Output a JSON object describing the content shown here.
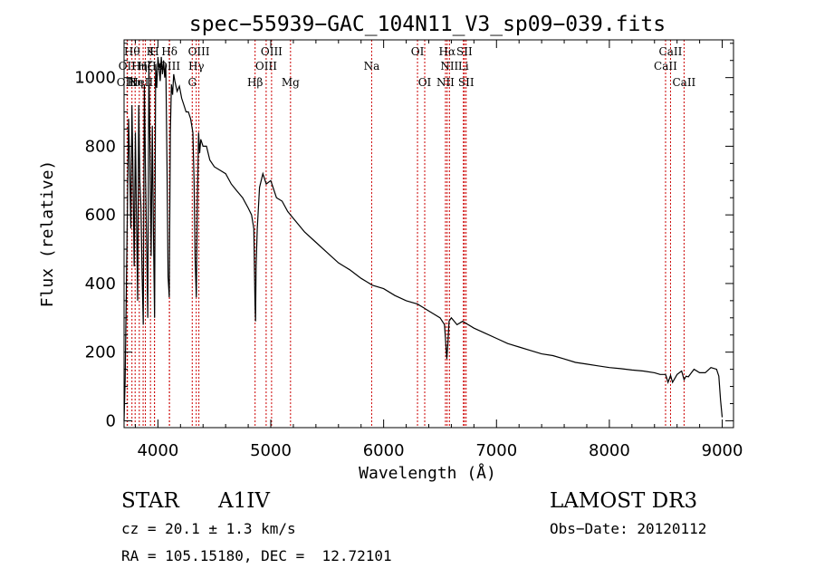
{
  "chart_data": {
    "type": "line",
    "title": "spec−55939−GAC_104N11_V3_sp09−039.fits",
    "xlabel": "Wavelength (Å)",
    "ylabel": "Flux (relative)",
    "xlim": [
      3700,
      9100
    ],
    "ylim": [
      -20,
      1110
    ],
    "xticks": [
      4000,
      5000,
      6000,
      7000,
      8000,
      9000
    ],
    "yticks": [
      0,
      200,
      400,
      600,
      800,
      1000
    ],
    "series": [
      {
        "name": "spectrum",
        "x": [
          3700,
          3710,
          3720,
          3730,
          3740,
          3750,
          3760,
          3770,
          3780,
          3790,
          3800,
          3810,
          3820,
          3830,
          3840,
          3850,
          3860,
          3870,
          3880,
          3890,
          3900,
          3910,
          3920,
          3930,
          3940,
          3950,
          3960,
          3970,
          3980,
          3990,
          4000,
          4010,
          4020,
          4030,
          4040,
          4050,
          4060,
          4070,
          4080,
          4090,
          4100,
          4110,
          4120,
          4130,
          4140,
          4150,
          4170,
          4190,
          4210,
          4230,
          4250,
          4270,
          4290,
          4310,
          4320,
          4330,
          4340,
          4350,
          4360,
          4370,
          4380,
          4400,
          4430,
          4460,
          4500,
          4550,
          4600,
          4650,
          4700,
          4750,
          4800,
          4830,
          4850,
          4860,
          4865,
          4870,
          4880,
          4900,
          4930,
          4960,
          5000,
          5050,
          5100,
          5150,
          5200,
          5300,
          5400,
          5500,
          5600,
          5700,
          5800,
          5850,
          5900,
          6000,
          6100,
          6200,
          6300,
          6350,
          6400,
          6450,
          6500,
          6540,
          6560,
          6570,
          6580,
          6600,
          6650,
          6700,
          6750,
          6800,
          6900,
          7000,
          7100,
          7200,
          7300,
          7400,
          7500,
          7600,
          7700,
          7800,
          7900,
          8000,
          8100,
          8200,
          8300,
          8400,
          8450,
          8498,
          8520,
          8542,
          8560,
          8600,
          8640,
          8662,
          8680,
          8700,
          8750,
          8800,
          8850,
          8900,
          8950,
          8970,
          8985,
          9000
        ],
        "values": [
          0,
          120,
          380,
          620,
          880,
          740,
          560,
          920,
          690,
          450,
          840,
          600,
          350,
          920,
          700,
          620,
          430,
          280,
          980,
          720,
          520,
          300,
          1040,
          780,
          480,
          860,
          560,
          300,
          1040,
          970,
          1060,
          1030,
          990,
          1060,
          1010,
          1050,
          1000,
          1040,
          750,
          420,
          360,
          840,
          980,
          950,
          1010,
          990,
          960,
          975,
          940,
          920,
          900,
          900,
          880,
          840,
          700,
          470,
          360,
          640,
          840,
          780,
          820,
          800,
          800,
          760,
          740,
          730,
          720,
          690,
          670,
          650,
          620,
          600,
          560,
          340,
          290,
          450,
          560,
          680,
          720,
          690,
          700,
          650,
          640,
          610,
          590,
          550,
          520,
          490,
          460,
          440,
          415,
          405,
          395,
          385,
          365,
          350,
          340,
          330,
          320,
          310,
          300,
          280,
          180,
          230,
          290,
          300,
          280,
          290,
          280,
          270,
          255,
          240,
          225,
          215,
          205,
          195,
          190,
          180,
          170,
          165,
          160,
          155,
          152,
          148,
          145,
          140,
          135,
          135,
          112,
          132,
          112,
          135,
          145,
          120,
          130,
          128,
          150,
          140,
          140,
          155,
          150,
          130,
          60,
          10
        ]
      }
    ],
    "lines": [
      {
        "x": 3727,
        "label": "OII",
        "row": 2
      },
      {
        "x": 3730,
        "label": "OIII",
        "row": 3
      },
      {
        "x": 3770,
        "label": "Hθ",
        "row": 1
      },
      {
        "x": 3798,
        "label": "Hη",
        "row": 3
      },
      {
        "x": 3835,
        "label": "Hη",
        "row": 2
      },
      {
        "x": 3869,
        "label": "NeIII",
        "row": 3
      },
      {
        "x": 3889,
        "label": "Hζ",
        "row": 2
      },
      {
        "x": 3934,
        "label": "K",
        "row": 1
      },
      {
        "x": 3969,
        "label": "H",
        "row": 1
      },
      {
        "x": 3970,
        "label": "Hε",
        "row": 2
      },
      {
        "x": 4102,
        "label": "Hδ",
        "row": 1
      },
      {
        "x": 4102,
        "label": "OIII",
        "row": 2
      },
      {
        "x": 4304,
        "label": "G",
        "row": 3
      },
      {
        "x": 4340,
        "label": "Hγ",
        "row": 2
      },
      {
        "x": 4363,
        "label": "OIII",
        "row": 1
      },
      {
        "x": 4861,
        "label": "Hβ",
        "row": 3
      },
      {
        "x": 4959,
        "label": "OIII",
        "row": 2
      },
      {
        "x": 5007,
        "label": "OIII",
        "row": 1
      },
      {
        "x": 5175,
        "label": "Mg",
        "row": 3
      },
      {
        "x": 5894,
        "label": "Na",
        "row": 2
      },
      {
        "x": 6300,
        "label": "OI",
        "row": 1
      },
      {
        "x": 6364,
        "label": "OI",
        "row": 3
      },
      {
        "x": 6548,
        "label": "NII",
        "row": 3
      },
      {
        "x": 6563,
        "label": "Hα",
        "row": 1
      },
      {
        "x": 6583,
        "label": "NII",
        "row": 2
      },
      {
        "x": 6707,
        "label": "Li",
        "row": 2
      },
      {
        "x": 6716,
        "label": "SII",
        "row": 1
      },
      {
        "x": 6731,
        "label": "SII",
        "row": 3
      },
      {
        "x": 8498,
        "label": "CaII",
        "row": 2
      },
      {
        "x": 8542,
        "label": "CaII",
        "row": 1
      },
      {
        "x": 8662,
        "label": "CaII",
        "row": 3
      }
    ]
  },
  "info": {
    "object_class": "STAR",
    "subclass": "A1IV",
    "survey": "LAMOST DR3",
    "redshift": "cz = 20.1 ± 1.3 km/s",
    "obs_date": "Obs−Date: 20120112",
    "coords": "RA = 105.15180, DEC =  12.72101"
  }
}
